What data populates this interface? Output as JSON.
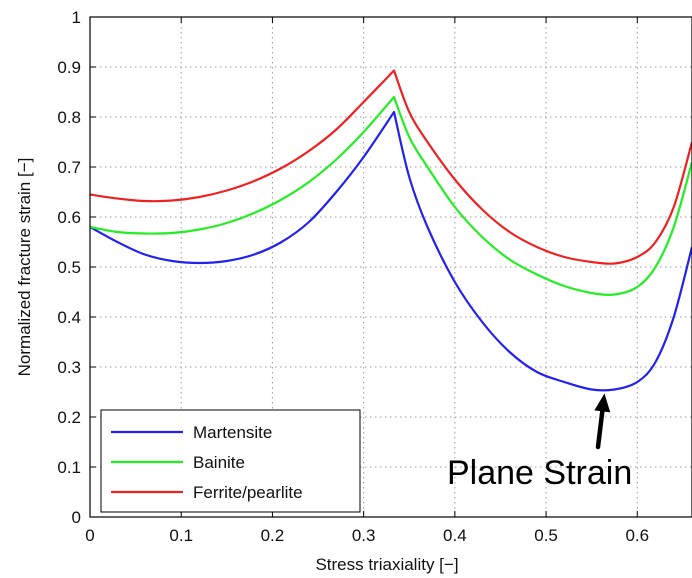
{
  "chart_data": {
    "type": "line",
    "title": "",
    "xlabel": "Stress triaxiality [−]",
    "ylabel": "Normalized fracture strain [−]",
    "xlim": [
      0,
      0.66
    ],
    "ylim": [
      0,
      1
    ],
    "xticks": [
      0,
      0.1,
      0.2,
      0.3,
      0.4,
      0.5,
      0.6
    ],
    "xtick_labels": [
      "0",
      "0.1",
      "0.2",
      "0.3",
      "0.4",
      "0.5",
      "0.6"
    ],
    "yticks": [
      0,
      0.1,
      0.2,
      0.3,
      0.4,
      0.5,
      0.6,
      0.7,
      0.8,
      0.9,
      1
    ],
    "ytick_labels": [
      "0",
      "0.1",
      "0.2",
      "0.3",
      "0.4",
      "0.5",
      "0.6",
      "0.7",
      "0.8",
      "0.9",
      "1"
    ],
    "grid": true,
    "legend_position": "bottom-left",
    "series": [
      {
        "name": "Martensite",
        "color": "#2222ee",
        "x": [
          0,
          0.03,
          0.06,
          0.09,
          0.12,
          0.15,
          0.18,
          0.21,
          0.24,
          0.27,
          0.3,
          0.3333,
          0.35,
          0.37,
          0.4,
          0.43,
          0.46,
          0.49,
          0.52,
          0.55,
          0.575,
          0.6,
          0.62,
          0.64,
          0.66
        ],
        "y": [
          0.58,
          0.55,
          0.525,
          0.512,
          0.508,
          0.512,
          0.525,
          0.55,
          0.59,
          0.65,
          0.72,
          0.81,
          0.68,
          0.58,
          0.47,
          0.39,
          0.33,
          0.29,
          0.27,
          0.255,
          0.255,
          0.27,
          0.31,
          0.4,
          0.54
        ]
      },
      {
        "name": "Bainite",
        "color": "#22ee22",
        "x": [
          0,
          0.03,
          0.06,
          0.09,
          0.12,
          0.15,
          0.18,
          0.21,
          0.24,
          0.27,
          0.3,
          0.3333,
          0.35,
          0.37,
          0.4,
          0.43,
          0.46,
          0.49,
          0.52,
          0.55,
          0.575,
          0.6,
          0.62,
          0.64,
          0.66
        ],
        "y": [
          0.58,
          0.57,
          0.567,
          0.568,
          0.575,
          0.588,
          0.608,
          0.635,
          0.67,
          0.715,
          0.77,
          0.84,
          0.76,
          0.7,
          0.62,
          0.56,
          0.515,
          0.485,
          0.462,
          0.448,
          0.445,
          0.46,
          0.5,
          0.58,
          0.71
        ]
      },
      {
        "name": "Ferrite/pearlite",
        "color": "#ee2222",
        "x": [
          0,
          0.03,
          0.06,
          0.09,
          0.12,
          0.15,
          0.18,
          0.21,
          0.24,
          0.27,
          0.3,
          0.3333,
          0.35,
          0.37,
          0.4,
          0.43,
          0.46,
          0.49,
          0.52,
          0.55,
          0.575,
          0.6,
          0.62,
          0.64,
          0.66
        ],
        "y": [
          0.645,
          0.637,
          0.632,
          0.633,
          0.64,
          0.653,
          0.672,
          0.698,
          0.732,
          0.775,
          0.83,
          0.893,
          0.81,
          0.75,
          0.675,
          0.615,
          0.57,
          0.54,
          0.52,
          0.51,
          0.507,
          0.52,
          0.55,
          0.62,
          0.75
        ]
      }
    ],
    "annotations": [
      {
        "text": "Plane Strain",
        "arrow_to": [
          0.575,
          0.255
        ]
      }
    ]
  }
}
